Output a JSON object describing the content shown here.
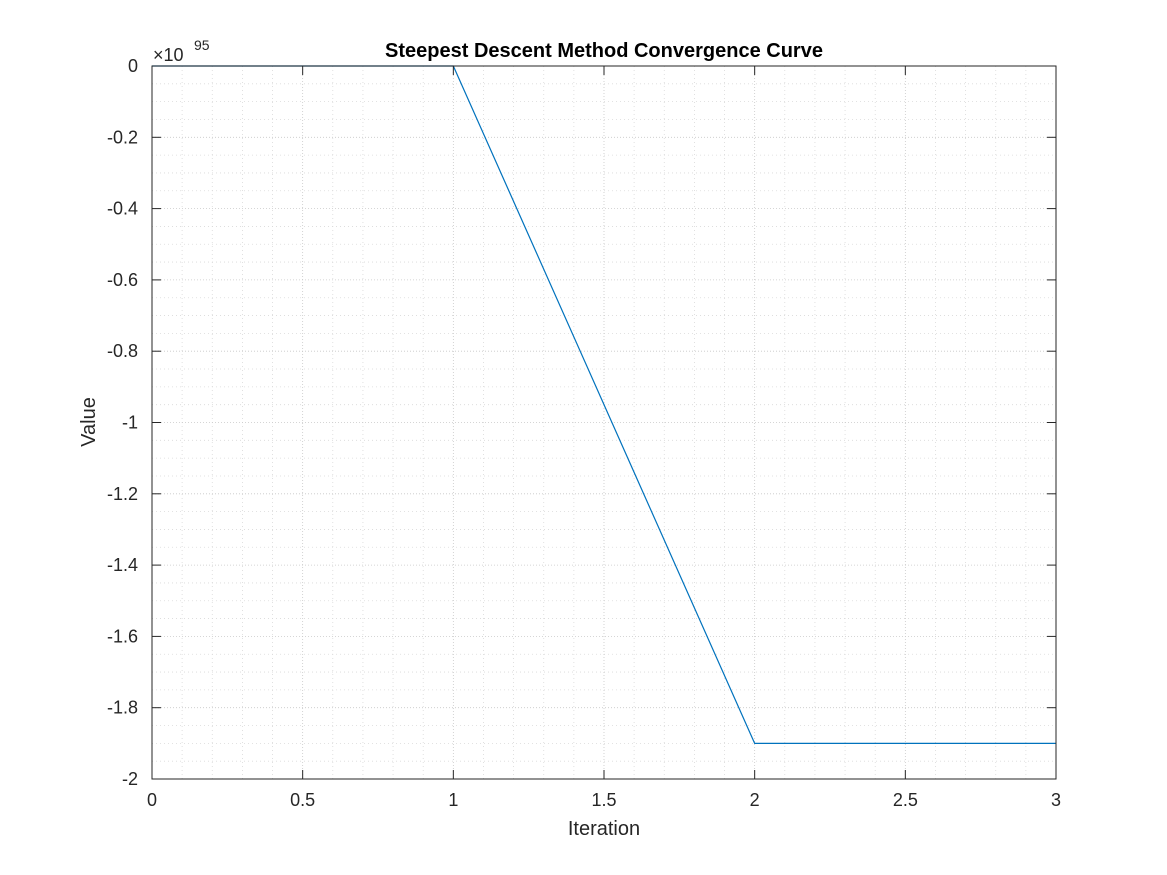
{
  "chart_data": {
    "type": "line",
    "title": "Steepest Descent Method Convergence Curve",
    "xlabel": "Iteration",
    "ylabel": "Value",
    "y_exponent_label": "×10",
    "y_exponent": "95",
    "xlim": [
      0,
      3
    ],
    "ylim": [
      -2,
      0
    ],
    "x_ticks": [
      "0",
      "0.5",
      "1",
      "1.5",
      "2",
      "2.5",
      "3"
    ],
    "y_ticks": [
      "0",
      "-0.2",
      "-0.4",
      "-0.6",
      "-0.8",
      "-1",
      "-1.2",
      "-1.4",
      "-1.6",
      "-1.8",
      "-2"
    ],
    "x_tick_values": [
      0,
      0.5,
      1,
      1.5,
      2,
      2.5,
      3
    ],
    "y_tick_values": [
      0,
      -0.2,
      -0.4,
      -0.6,
      -0.8,
      -1,
      -1.2,
      -1.4,
      -1.6,
      -1.8,
      -2
    ],
    "grid": true,
    "minor_grid": true,
    "series": [
      {
        "x": [
          0,
          1,
          2,
          3
        ],
        "y": [
          0,
          0,
          -1.9,
          -1.9
        ],
        "color": "#0072BD"
      }
    ]
  }
}
